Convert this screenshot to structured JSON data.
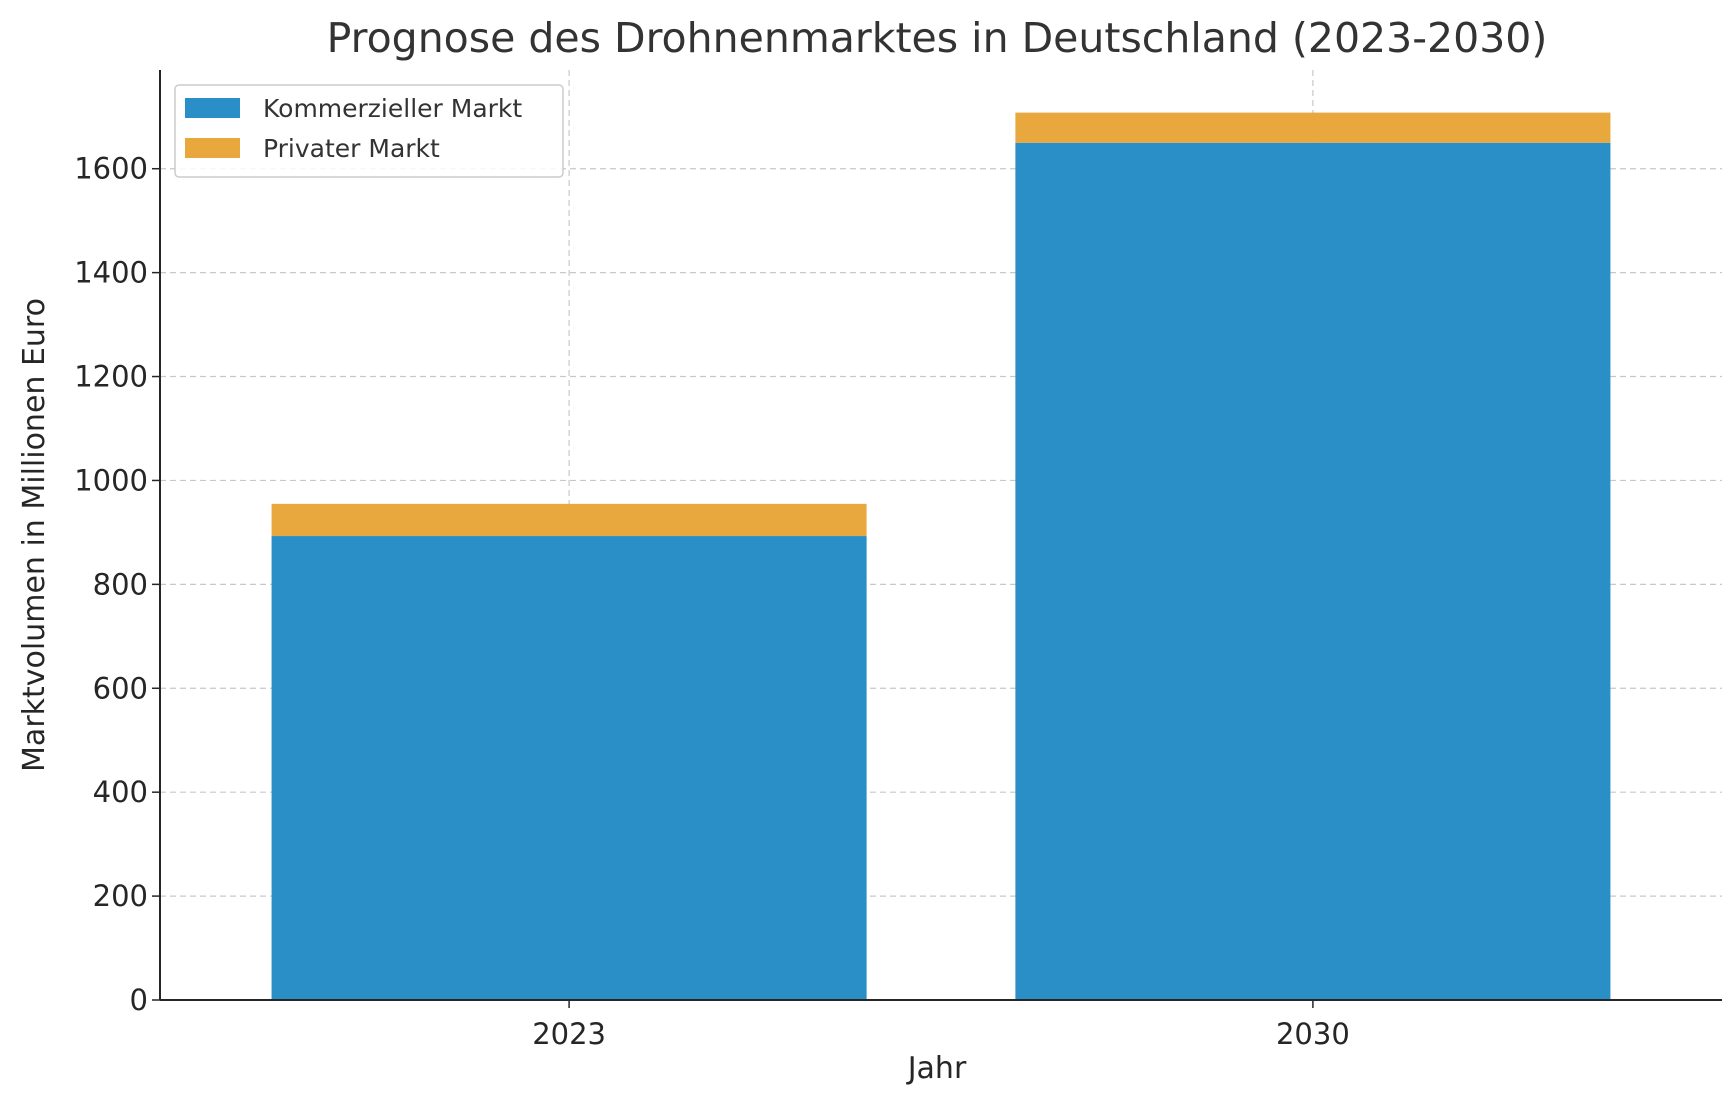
{
  "chart_data": {
    "type": "bar",
    "stacked": true,
    "title": "Prognose des Drohnenmarktes in Deutschland (2023-2030)",
    "xlabel": "Jahr",
    "ylabel": "Marktvolumen in Millionen Euro",
    "categories": [
      "2023",
      "2030"
    ],
    "series": [
      {
        "name": "Kommerzieller Markt",
        "values": [
          893,
          1650
        ],
        "color": "#2a8fc6"
      },
      {
        "name": "Privater Markt",
        "values": [
          62,
          58
        ],
        "color": "#e8a83e"
      }
    ],
    "ylim": [
      0,
      1790
    ],
    "yticks": [
      0,
      200,
      400,
      600,
      800,
      1000,
      1200,
      1400,
      1600
    ],
    "ytick_labels": [
      "0",
      "200",
      "400",
      "600",
      "800",
      "1000",
      "1200",
      "1400",
      "1600"
    ],
    "grid": true,
    "legend_position": "top-left"
  }
}
